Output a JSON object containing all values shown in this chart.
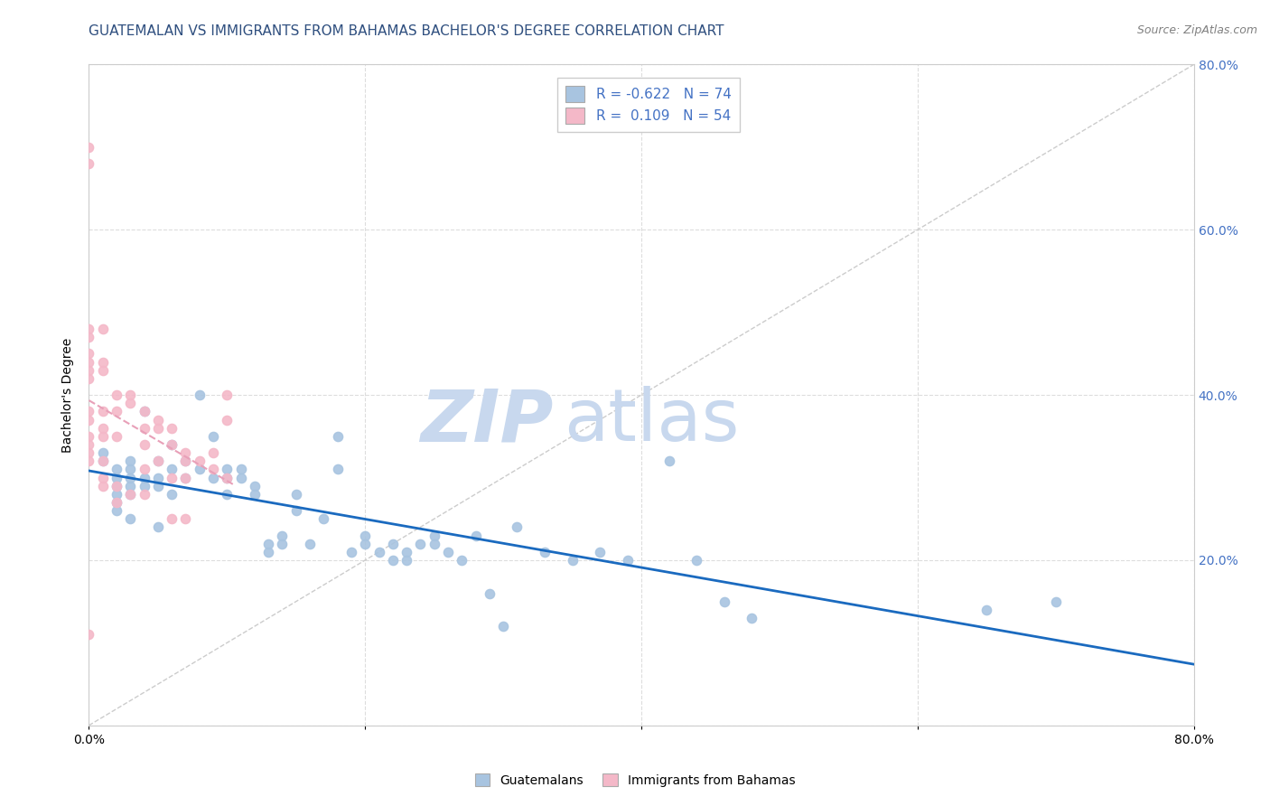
{
  "title": "GUATEMALAN VS IMMIGRANTS FROM BAHAMAS BACHELOR'S DEGREE CORRELATION CHART",
  "source": "Source: ZipAtlas.com",
  "ylabel": "Bachelor's Degree",
  "x_min": 0.0,
  "x_max": 0.8,
  "y_min": 0.0,
  "y_max": 0.8,
  "x_ticks": [
    0.0,
    0.2,
    0.4,
    0.6,
    0.8
  ],
  "y_ticks": [
    0.0,
    0.2,
    0.4,
    0.6,
    0.8
  ],
  "x_tick_labels_bottom": [
    "0.0%",
    "",
    "",
    "",
    "80.0%"
  ],
  "y_tick_labels_right": [
    "",
    "20.0%",
    "40.0%",
    "60.0%",
    "80.0%"
  ],
  "guatemalan_color": "#a8c4e0",
  "bahamas_color": "#f4b8c8",
  "trend_guatemalan_color": "#1a6abf",
  "trend_bahamas_color": "#e8a0b8",
  "diagonal_color": "#cccccc",
  "watermark_zip_color": "#c8d8ee",
  "watermark_atlas_color": "#c8d8ee",
  "r_guatemalan": -0.622,
  "n_guatemalan": 74,
  "r_bahamas": 0.109,
  "n_bahamas": 54,
  "guatemalan_x": [
    0.01,
    0.01,
    0.02,
    0.02,
    0.02,
    0.02,
    0.02,
    0.02,
    0.03,
    0.03,
    0.03,
    0.03,
    0.03,
    0.03,
    0.04,
    0.04,
    0.04,
    0.05,
    0.05,
    0.05,
    0.05,
    0.06,
    0.06,
    0.06,
    0.07,
    0.07,
    0.08,
    0.08,
    0.09,
    0.09,
    0.1,
    0.1,
    0.1,
    0.11,
    0.11,
    0.12,
    0.12,
    0.13,
    0.13,
    0.14,
    0.14,
    0.15,
    0.15,
    0.16,
    0.17,
    0.18,
    0.18,
    0.19,
    0.2,
    0.2,
    0.21,
    0.22,
    0.22,
    0.23,
    0.23,
    0.24,
    0.25,
    0.25,
    0.26,
    0.27,
    0.28,
    0.29,
    0.3,
    0.31,
    0.33,
    0.35,
    0.37,
    0.39,
    0.42,
    0.44,
    0.46,
    0.48,
    0.65,
    0.7
  ],
  "guatemalan_y": [
    0.32,
    0.33,
    0.3,
    0.31,
    0.29,
    0.28,
    0.27,
    0.26,
    0.32,
    0.31,
    0.3,
    0.29,
    0.28,
    0.25,
    0.3,
    0.29,
    0.38,
    0.32,
    0.3,
    0.29,
    0.24,
    0.34,
    0.31,
    0.28,
    0.32,
    0.3,
    0.4,
    0.31,
    0.35,
    0.3,
    0.31,
    0.3,
    0.28,
    0.31,
    0.3,
    0.29,
    0.28,
    0.22,
    0.21,
    0.23,
    0.22,
    0.28,
    0.26,
    0.22,
    0.25,
    0.35,
    0.31,
    0.21,
    0.23,
    0.22,
    0.21,
    0.22,
    0.2,
    0.21,
    0.2,
    0.22,
    0.23,
    0.22,
    0.21,
    0.2,
    0.23,
    0.16,
    0.12,
    0.24,
    0.21,
    0.2,
    0.21,
    0.2,
    0.32,
    0.2,
    0.15,
    0.13,
    0.14,
    0.15
  ],
  "bahamas_x": [
    0.0,
    0.0,
    0.0,
    0.0,
    0.0,
    0.0,
    0.0,
    0.0,
    0.0,
    0.0,
    0.0,
    0.0,
    0.0,
    0.0,
    0.0,
    0.01,
    0.01,
    0.01,
    0.01,
    0.01,
    0.01,
    0.01,
    0.01,
    0.01,
    0.02,
    0.02,
    0.02,
    0.02,
    0.02,
    0.03,
    0.03,
    0.03,
    0.04,
    0.04,
    0.04,
    0.04,
    0.04,
    0.05,
    0.05,
    0.05,
    0.06,
    0.06,
    0.06,
    0.06,
    0.07,
    0.07,
    0.07,
    0.07,
    0.08,
    0.09,
    0.09,
    0.1,
    0.1,
    0.1
  ],
  "bahamas_y": [
    0.7,
    0.68,
    0.48,
    0.47,
    0.45,
    0.44,
    0.43,
    0.42,
    0.38,
    0.37,
    0.35,
    0.34,
    0.33,
    0.32,
    0.11,
    0.48,
    0.44,
    0.43,
    0.38,
    0.36,
    0.35,
    0.32,
    0.3,
    0.29,
    0.4,
    0.38,
    0.35,
    0.29,
    0.27,
    0.4,
    0.39,
    0.28,
    0.38,
    0.36,
    0.34,
    0.31,
    0.28,
    0.37,
    0.36,
    0.32,
    0.36,
    0.34,
    0.3,
    0.25,
    0.33,
    0.32,
    0.3,
    0.25,
    0.32,
    0.33,
    0.31,
    0.4,
    0.37,
    0.3
  ],
  "legend_label_guatemalan": "Guatemalans",
  "legend_label_bahamas": "Immigrants from Bahamas",
  "title_fontsize": 11,
  "axis_label_fontsize": 10,
  "tick_fontsize": 10,
  "right_tick_color": "#4472c4",
  "grid_color": "#dddddd"
}
